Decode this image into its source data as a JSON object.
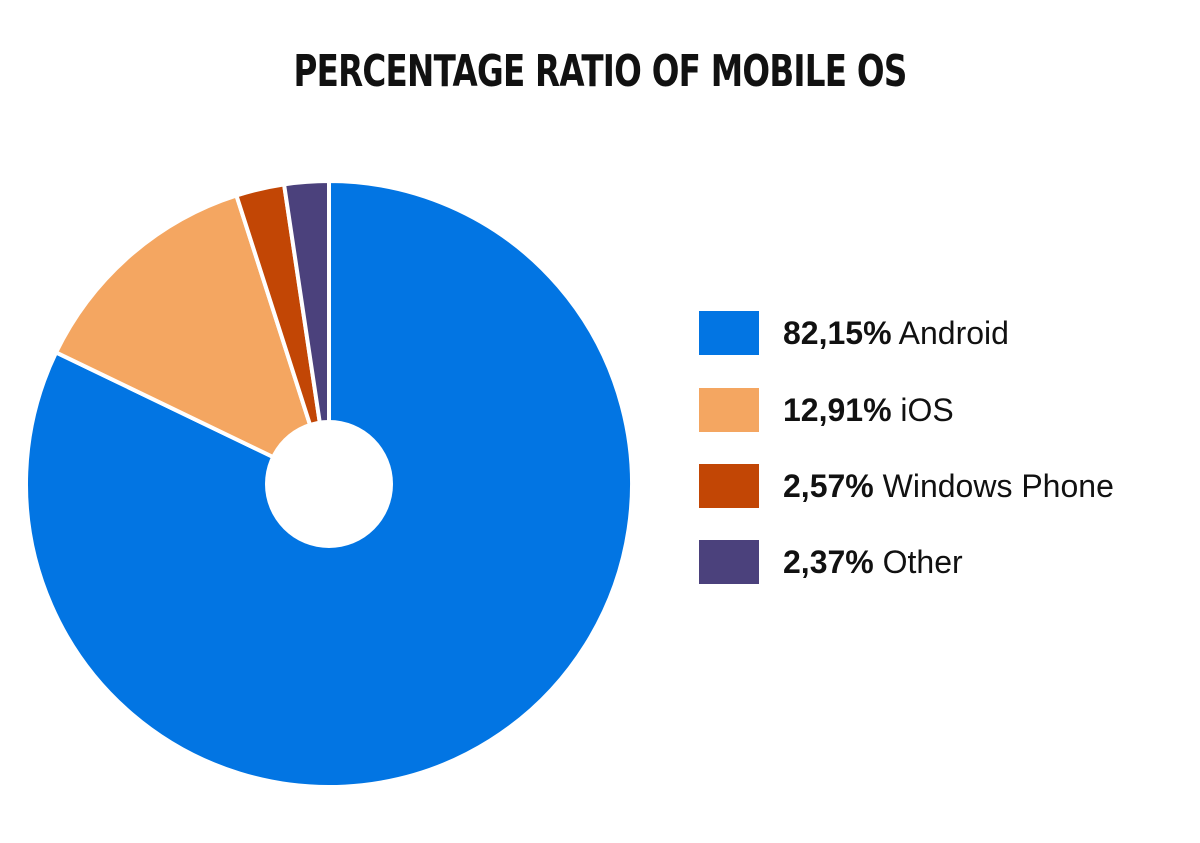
{
  "chart_data": {
    "type": "pie",
    "title": "PERCENTAGE RATIO OF MOBILE OS",
    "donut": true,
    "start_angle_deg": 0,
    "direction": "clockwise",
    "slice_border_color": "#ffffff",
    "legend_placement": "right",
    "series": [
      {
        "name": "Android",
        "value": 82.15,
        "label": "82,15%",
        "color": "#0275E3"
      },
      {
        "name": "iOS",
        "value": 12.91,
        "label": "12,91%",
        "color": "#F4A661"
      },
      {
        "name": "Windows Phone",
        "value": 2.57,
        "label": "2,57%",
        "color": "#C24605"
      },
      {
        "name": "Other",
        "value": 2.37,
        "label": "2,37%",
        "color": "#4B417C"
      }
    ]
  }
}
